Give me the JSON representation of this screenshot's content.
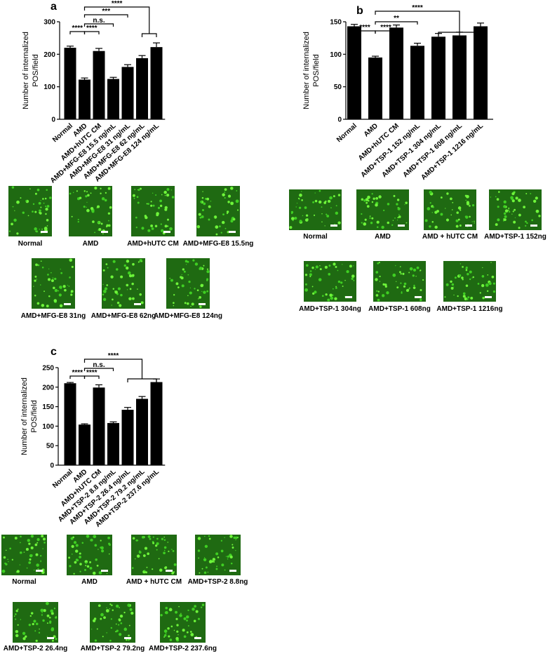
{
  "chart_data": [
    {
      "type": "bar",
      "label": "a",
      "ylabel": [
        "Number of internalized",
        "POS/field"
      ],
      "categories": [
        "Normal",
        "AMD",
        "AMD+hUTC CM",
        "AMD+MFG-E8 15.5 ng/mL",
        "AMD+MFG-E8 31 ng/mL",
        "AMD+MFG-E8 62 ng/mL",
        "AMD+MFG-E8 124 ng/mL"
      ],
      "values": [
        220,
        122,
        210,
        124,
        161,
        188,
        222
      ],
      "errors": [
        5,
        5,
        8,
        5,
        7,
        8,
        13
      ],
      "color": "#000000",
      "ylim": [
        0,
        300
      ],
      "yticks": [
        0,
        100,
        200,
        300
      ],
      "annotations": [
        "****",
        "****",
        "n.s.",
        "***",
        "****"
      ],
      "micrograph_captions": [
        "Normal",
        "AMD",
        "AMD+hUTC CM",
        "AMD+MFG-E8 15.5ng",
        "AMD+MFG-E8 31ng",
        "AMD+MFG-E8 62ng",
        "AMD+MFG-E8 124ng"
      ]
    },
    {
      "type": "bar",
      "label": "b",
      "ylabel": [
        "Number of internalized",
        "POS/field"
      ],
      "categories": [
        "Normal",
        "AMD",
        "AMD+hUTC CM",
        "AMD+TSP-1 152 ng/mL",
        "AMD+TSP-1 304 ng/mL",
        "AMD+TSP-1 608 ng/mL",
        "AMD+TSP-1 1216 ng/mL"
      ],
      "values": [
        143,
        95,
        141,
        113,
        127,
        129,
        143
      ],
      "errors": [
        3,
        2,
        4,
        4,
        5,
        5,
        5
      ],
      "color": "#000000",
      "ylim": [
        0,
        150
      ],
      "yticks": [
        0,
        50,
        100,
        150
      ],
      "annotations": [
        "****",
        "****",
        "**",
        "****"
      ],
      "micrograph_captions": [
        "Normal",
        "AMD",
        "AMD + hUTC CM",
        "AMD+TSP-1 152ng",
        "AMD+TSP-1 304ng",
        "AMD+TSP-1 608ng",
        "AMD+TSP-1 1216ng"
      ]
    },
    {
      "type": "bar",
      "label": "c",
      "ylabel": [
        "Number of internalized",
        "POS/field"
      ],
      "categories": [
        "Normal",
        "AMD",
        "AMD+hUTC CM",
        "AMD+TSP-2 8.8 ng/mL",
        "AMD+TSP-2 26.4 ng/mL",
        "AMD+TSP-2 79.2 ng/mL",
        "AMD+TSP-2 237.6 ng/mL"
      ],
      "values": [
        210,
        104,
        199,
        108,
        142,
        170,
        213
      ],
      "errors": [
        2,
        2,
        7,
        3,
        6,
        6,
        8
      ],
      "color": "#000000",
      "ylim": [
        0,
        250
      ],
      "yticks": [
        0,
        50,
        100,
        150,
        200,
        250
      ],
      "annotations": [
        "****",
        "****",
        "n.s.",
        "****"
      ],
      "micrograph_captions": [
        "Normal",
        "AMD",
        "AMD + hUTC CM",
        "AMD+TSP-2 8.8ng",
        "AMD+TSP-2 26.4ng",
        "AMD+TSP-2 79.2ng",
        "AMD+TSP-2 237.6ng"
      ]
    }
  ]
}
